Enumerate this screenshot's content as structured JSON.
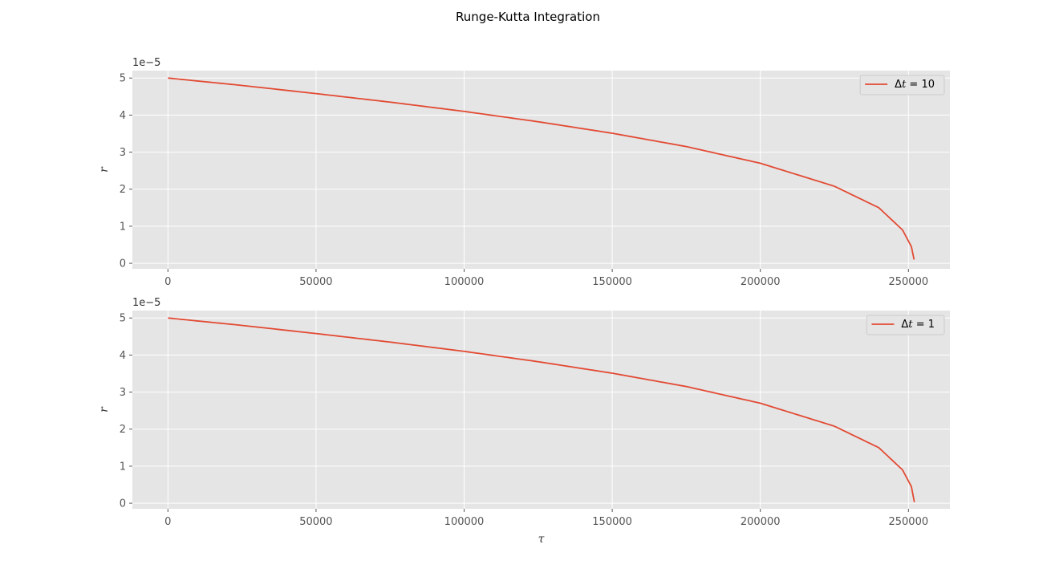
{
  "figure": {
    "suptitle": "Runge-Kutta Integration"
  },
  "chart_data": [
    {
      "type": "line",
      "xlabel": "",
      "ylabel": "r",
      "y_offset_label": "1e−5",
      "xlim": [
        -12000,
        264000
      ],
      "ylim": [
        -0.15,
        5.2
      ],
      "x_ticks": [
        0,
        50000,
        100000,
        150000,
        200000,
        250000
      ],
      "x_tick_labels": [
        "0",
        "50000",
        "100000",
        "150000",
        "200000",
        "250000"
      ],
      "y_ticks": [
        0,
        1,
        2,
        3,
        4,
        5
      ],
      "y_tick_labels": [
        "0",
        "1",
        "2",
        "3",
        "4",
        "5"
      ],
      "grid": true,
      "legend_position": "upper-right",
      "series": [
        {
          "name": "Δt = 10",
          "legend_prefix": "Δ",
          "legend_var": "t",
          "legend_suffix": " = 10",
          "color": "#E24A33",
          "t_end": 251900,
          "r_end": 0.1,
          "x": [
            0,
            25000,
            50000,
            75000,
            100000,
            125000,
            150000,
            175000,
            200000,
            225000,
            240000,
            248000,
            251000,
            251900
          ],
          "y": [
            5.0,
            4.8,
            4.58,
            4.35,
            4.1,
            3.82,
            3.51,
            3.15,
            2.7,
            2.08,
            1.5,
            0.9,
            0.45,
            0.1
          ]
        }
      ]
    },
    {
      "type": "line",
      "xlabel": "τ",
      "ylabel": "r",
      "y_offset_label": "1e−5",
      "xlim": [
        -12000,
        264000
      ],
      "ylim": [
        -0.15,
        5.2
      ],
      "x_ticks": [
        0,
        50000,
        100000,
        150000,
        200000,
        250000
      ],
      "x_tick_labels": [
        "0",
        "50000",
        "100000",
        "150000",
        "200000",
        "250000"
      ],
      "y_ticks": [
        0,
        1,
        2,
        3,
        4,
        5
      ],
      "y_tick_labels": [
        "0",
        "1",
        "2",
        "3",
        "4",
        "5"
      ],
      "grid": true,
      "legend_position": "upper-right",
      "series": [
        {
          "name": "Δt = 1",
          "legend_prefix": "Δ",
          "legend_var": "t",
          "legend_suffix": " = 1",
          "color": "#E24A33",
          "t_end": 252000,
          "r_end": 0.03,
          "x": [
            0,
            25000,
            50000,
            75000,
            100000,
            125000,
            150000,
            175000,
            200000,
            225000,
            240000,
            248000,
            251000,
            252000
          ],
          "y": [
            5.0,
            4.8,
            4.58,
            4.35,
            4.1,
            3.82,
            3.51,
            3.15,
            2.7,
            2.08,
            1.5,
            0.9,
            0.45,
            0.03
          ]
        }
      ]
    }
  ]
}
